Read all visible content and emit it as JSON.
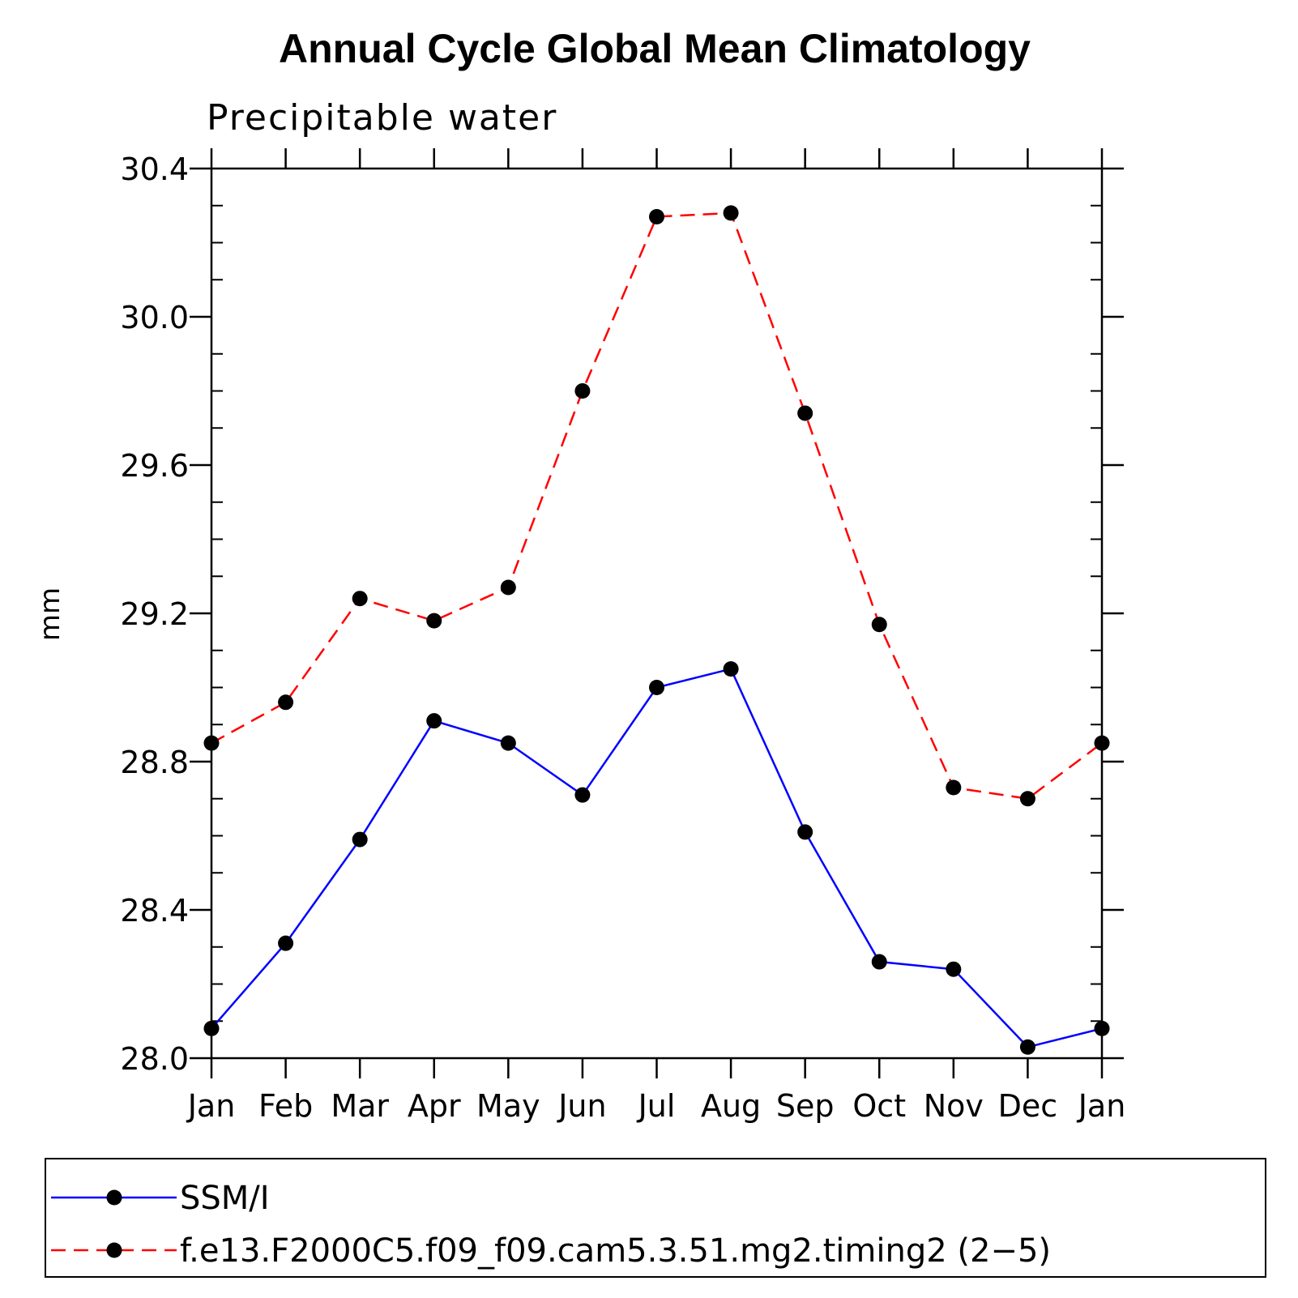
{
  "chart_data": {
    "type": "line",
    "title": "Annual Cycle Global Mean Climatology",
    "subtitle": "Precipitable water",
    "xlabel": "",
    "ylabel": "mm",
    "categories": [
      "Jan",
      "Feb",
      "Mar",
      "Apr",
      "May",
      "Jun",
      "Jul",
      "Aug",
      "Sep",
      "Oct",
      "Nov",
      "Dec",
      "Jan"
    ],
    "ylim": [
      28.0,
      30.4
    ],
    "yticks": [
      "28.0",
      "28.4",
      "28.8",
      "29.2",
      "29.6",
      "30.0",
      "30.4"
    ],
    "grid": false,
    "legend_position": "bottom",
    "series": [
      {
        "name": "SSM/I",
        "color": "#0000ff",
        "line_style": "solid",
        "marker": "circle",
        "values": [
          28.08,
          28.31,
          28.59,
          28.91,
          28.85,
          28.71,
          29.0,
          29.05,
          28.61,
          28.26,
          28.24,
          28.03,
          28.08
        ]
      },
      {
        "name": "f.e13.F2000C5.f09_f09.cam5.3.51.mg2.timing2 (2−5)",
        "color": "#ff0000",
        "line_style": "dashed",
        "marker": "circle",
        "values": [
          28.85,
          28.96,
          29.24,
          29.18,
          29.27,
          29.8,
          30.27,
          30.28,
          29.74,
          29.17,
          28.73,
          28.7,
          28.85
        ]
      }
    ]
  }
}
